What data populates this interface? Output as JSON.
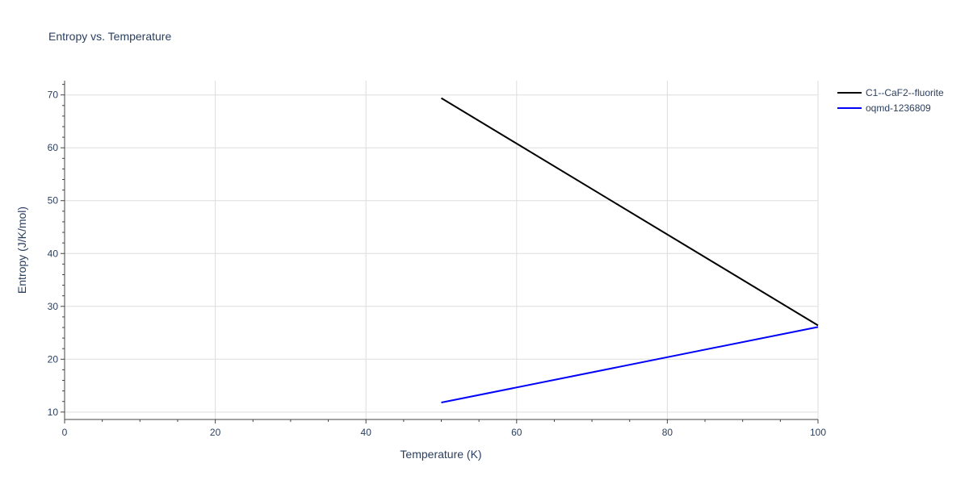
{
  "chart_data": {
    "type": "line",
    "title": "Entropy vs. Temperature",
    "xlabel": "Temperature (K)",
    "ylabel": "Entropy (J/K/mol)",
    "xlim": [
      0,
      100
    ],
    "ylim": [
      8.6,
      72.7
    ],
    "x_ticks": [
      0,
      20,
      40,
      60,
      80,
      100
    ],
    "y_ticks": [
      10,
      20,
      30,
      40,
      50,
      60,
      70
    ],
    "x_tick_labels": [
      "0",
      "20",
      "40",
      "60",
      "80",
      "100"
    ],
    "y_tick_labels": [
      "10",
      "20",
      "30",
      "40",
      "50",
      "60",
      "70"
    ],
    "x_minor_step": 5,
    "y_minor_step": 2,
    "grid": true,
    "legend_position": "top-right",
    "series": [
      {
        "name": "C1--CaF2--fluorite",
        "color": "#000000",
        "x": [
          50,
          100
        ],
        "y": [
          69.4,
          26.4
        ]
      },
      {
        "name": "oqmd-1236809",
        "color": "#0000ff",
        "x": [
          50,
          100
        ],
        "y": [
          11.8,
          26.1
        ]
      }
    ]
  }
}
